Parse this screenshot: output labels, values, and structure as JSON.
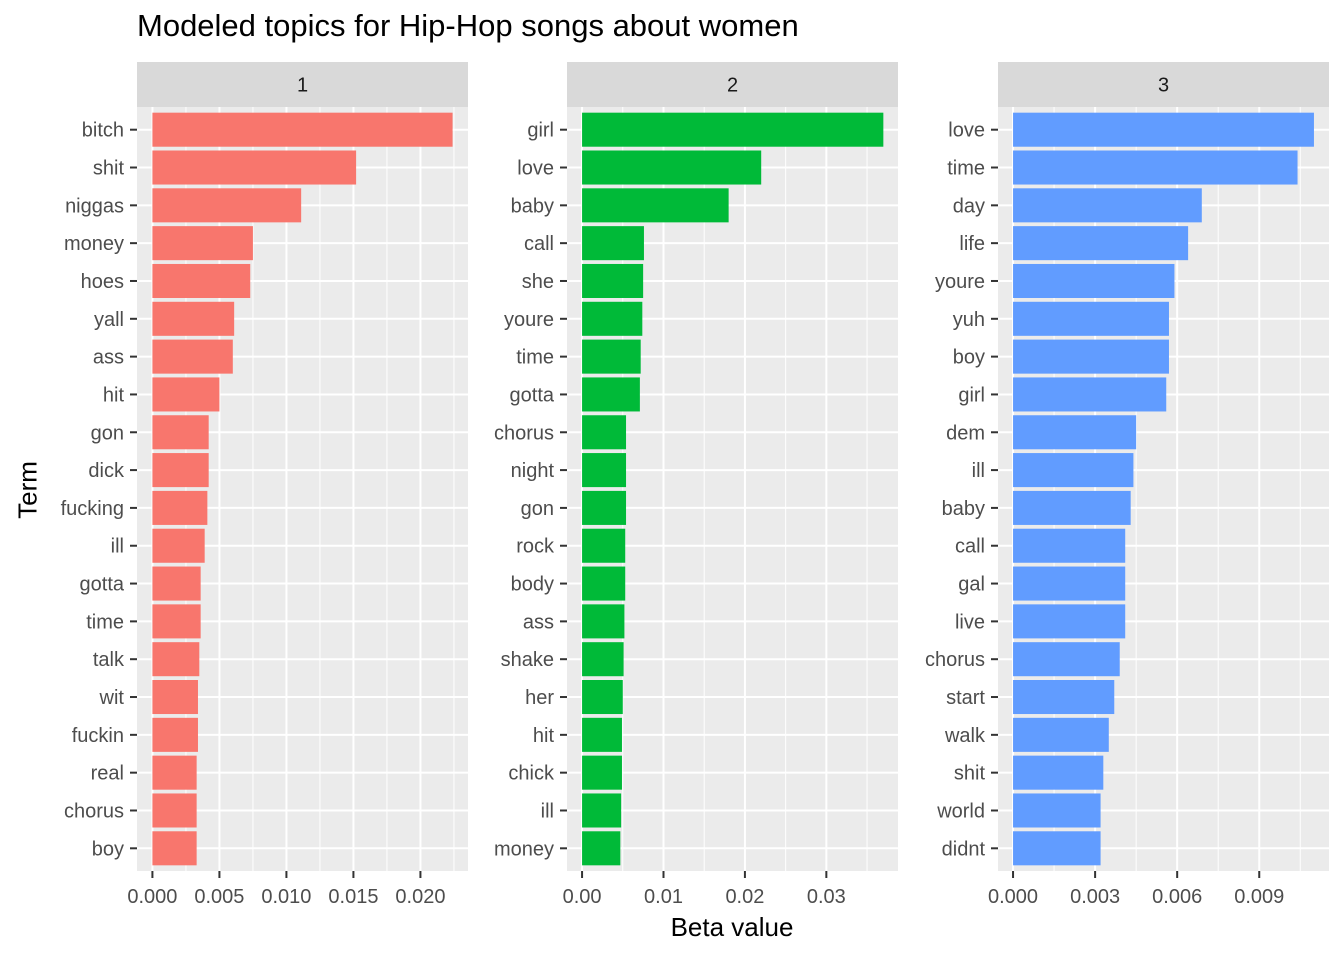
{
  "title": "Modeled topics for Hip-Hop songs about women",
  "xlabel": "Beta value",
  "ylabel": "Term",
  "chart_data": [
    {
      "type": "bar",
      "facet": "1",
      "color": "#F8766D",
      "categories": [
        "bitch",
        "shit",
        "niggas",
        "money",
        "hoes",
        "yall",
        "ass",
        "hit",
        "gon",
        "dick",
        "fucking",
        "ill",
        "gotta",
        "time",
        "talk",
        "wit",
        "fuckin",
        "real",
        "chorus",
        "boy"
      ],
      "values": [
        0.0224,
        0.0152,
        0.0111,
        0.0075,
        0.0073,
        0.0061,
        0.006,
        0.005,
        0.0042,
        0.0042,
        0.0041,
        0.0039,
        0.0036,
        0.0036,
        0.0035,
        0.0034,
        0.0034,
        0.0033,
        0.0033,
        0.0033
      ],
      "xlim": [
        -0.00115,
        0.02355
      ],
      "ticks": [
        0,
        0.005,
        0.01,
        0.015,
        0.02
      ],
      "tick_labels": [
        "0.000",
        "0.005",
        "0.010",
        "0.015",
        "0.020"
      ],
      "grid": true
    },
    {
      "type": "bar",
      "facet": "2",
      "color": "#00BA38",
      "categories": [
        "girl",
        "love",
        "baby",
        "call",
        "she",
        "youre",
        "time",
        "gotta",
        "chorus",
        "night",
        "gon",
        "rock",
        "body",
        "ass",
        "shake",
        "her",
        "hit",
        "chick",
        "ill",
        "money"
      ],
      "values": [
        0.037,
        0.022,
        0.018,
        0.0076,
        0.0075,
        0.0074,
        0.0072,
        0.0071,
        0.0054,
        0.0054,
        0.0054,
        0.0053,
        0.0053,
        0.0052,
        0.0051,
        0.005,
        0.0049,
        0.0049,
        0.0048,
        0.0047
      ],
      "xlim": [
        -0.00185,
        0.0388
      ],
      "ticks": [
        0,
        0.01,
        0.02,
        0.03
      ],
      "tick_labels": [
        "0.00",
        "0.01",
        "0.02",
        "0.03"
      ],
      "grid": true
    },
    {
      "type": "bar",
      "facet": "3",
      "color": "#619CFF",
      "categories": [
        "love",
        "time",
        "day",
        "life",
        "youre",
        "yuh",
        "boy",
        "girl",
        "dem",
        "ill",
        "baby",
        "call",
        "gal",
        "live",
        "chorus",
        "start",
        "walk",
        "shit",
        "world",
        "didnt"
      ],
      "values": [
        0.011,
        0.0104,
        0.0069,
        0.0064,
        0.0059,
        0.0057,
        0.0057,
        0.0056,
        0.0045,
        0.0044,
        0.0043,
        0.0041,
        0.0041,
        0.0041,
        0.0039,
        0.0037,
        0.0035,
        0.0033,
        0.0032,
        0.0032
      ],
      "xlim": [
        -0.00055,
        0.01155
      ],
      "ticks": [
        0,
        0.003,
        0.006,
        0.009
      ],
      "tick_labels": [
        "0.000",
        "0.003",
        "0.006",
        "0.009"
      ],
      "grid": true
    }
  ]
}
